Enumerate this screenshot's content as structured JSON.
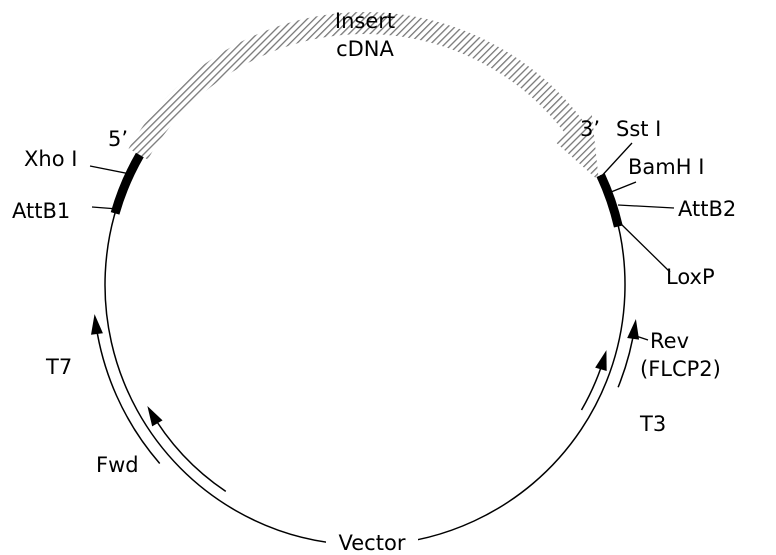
{
  "insert": [
    "Insert",
    "cDNA"
  ],
  "five_prime": "5’",
  "three_prime": "3’",
  "left_sites": [
    "Xho I",
    "AttB1"
  ],
  "right_sites": [
    "Sst I",
    "BamH I",
    "AttB2",
    "LoxP"
  ],
  "primers": {
    "rev": [
      "Rev",
      "(FLCP2)"
    ],
    "t7": "T7",
    "t3": "T3",
    "fwd": "Fwd"
  },
  "vector": "Vector"
}
